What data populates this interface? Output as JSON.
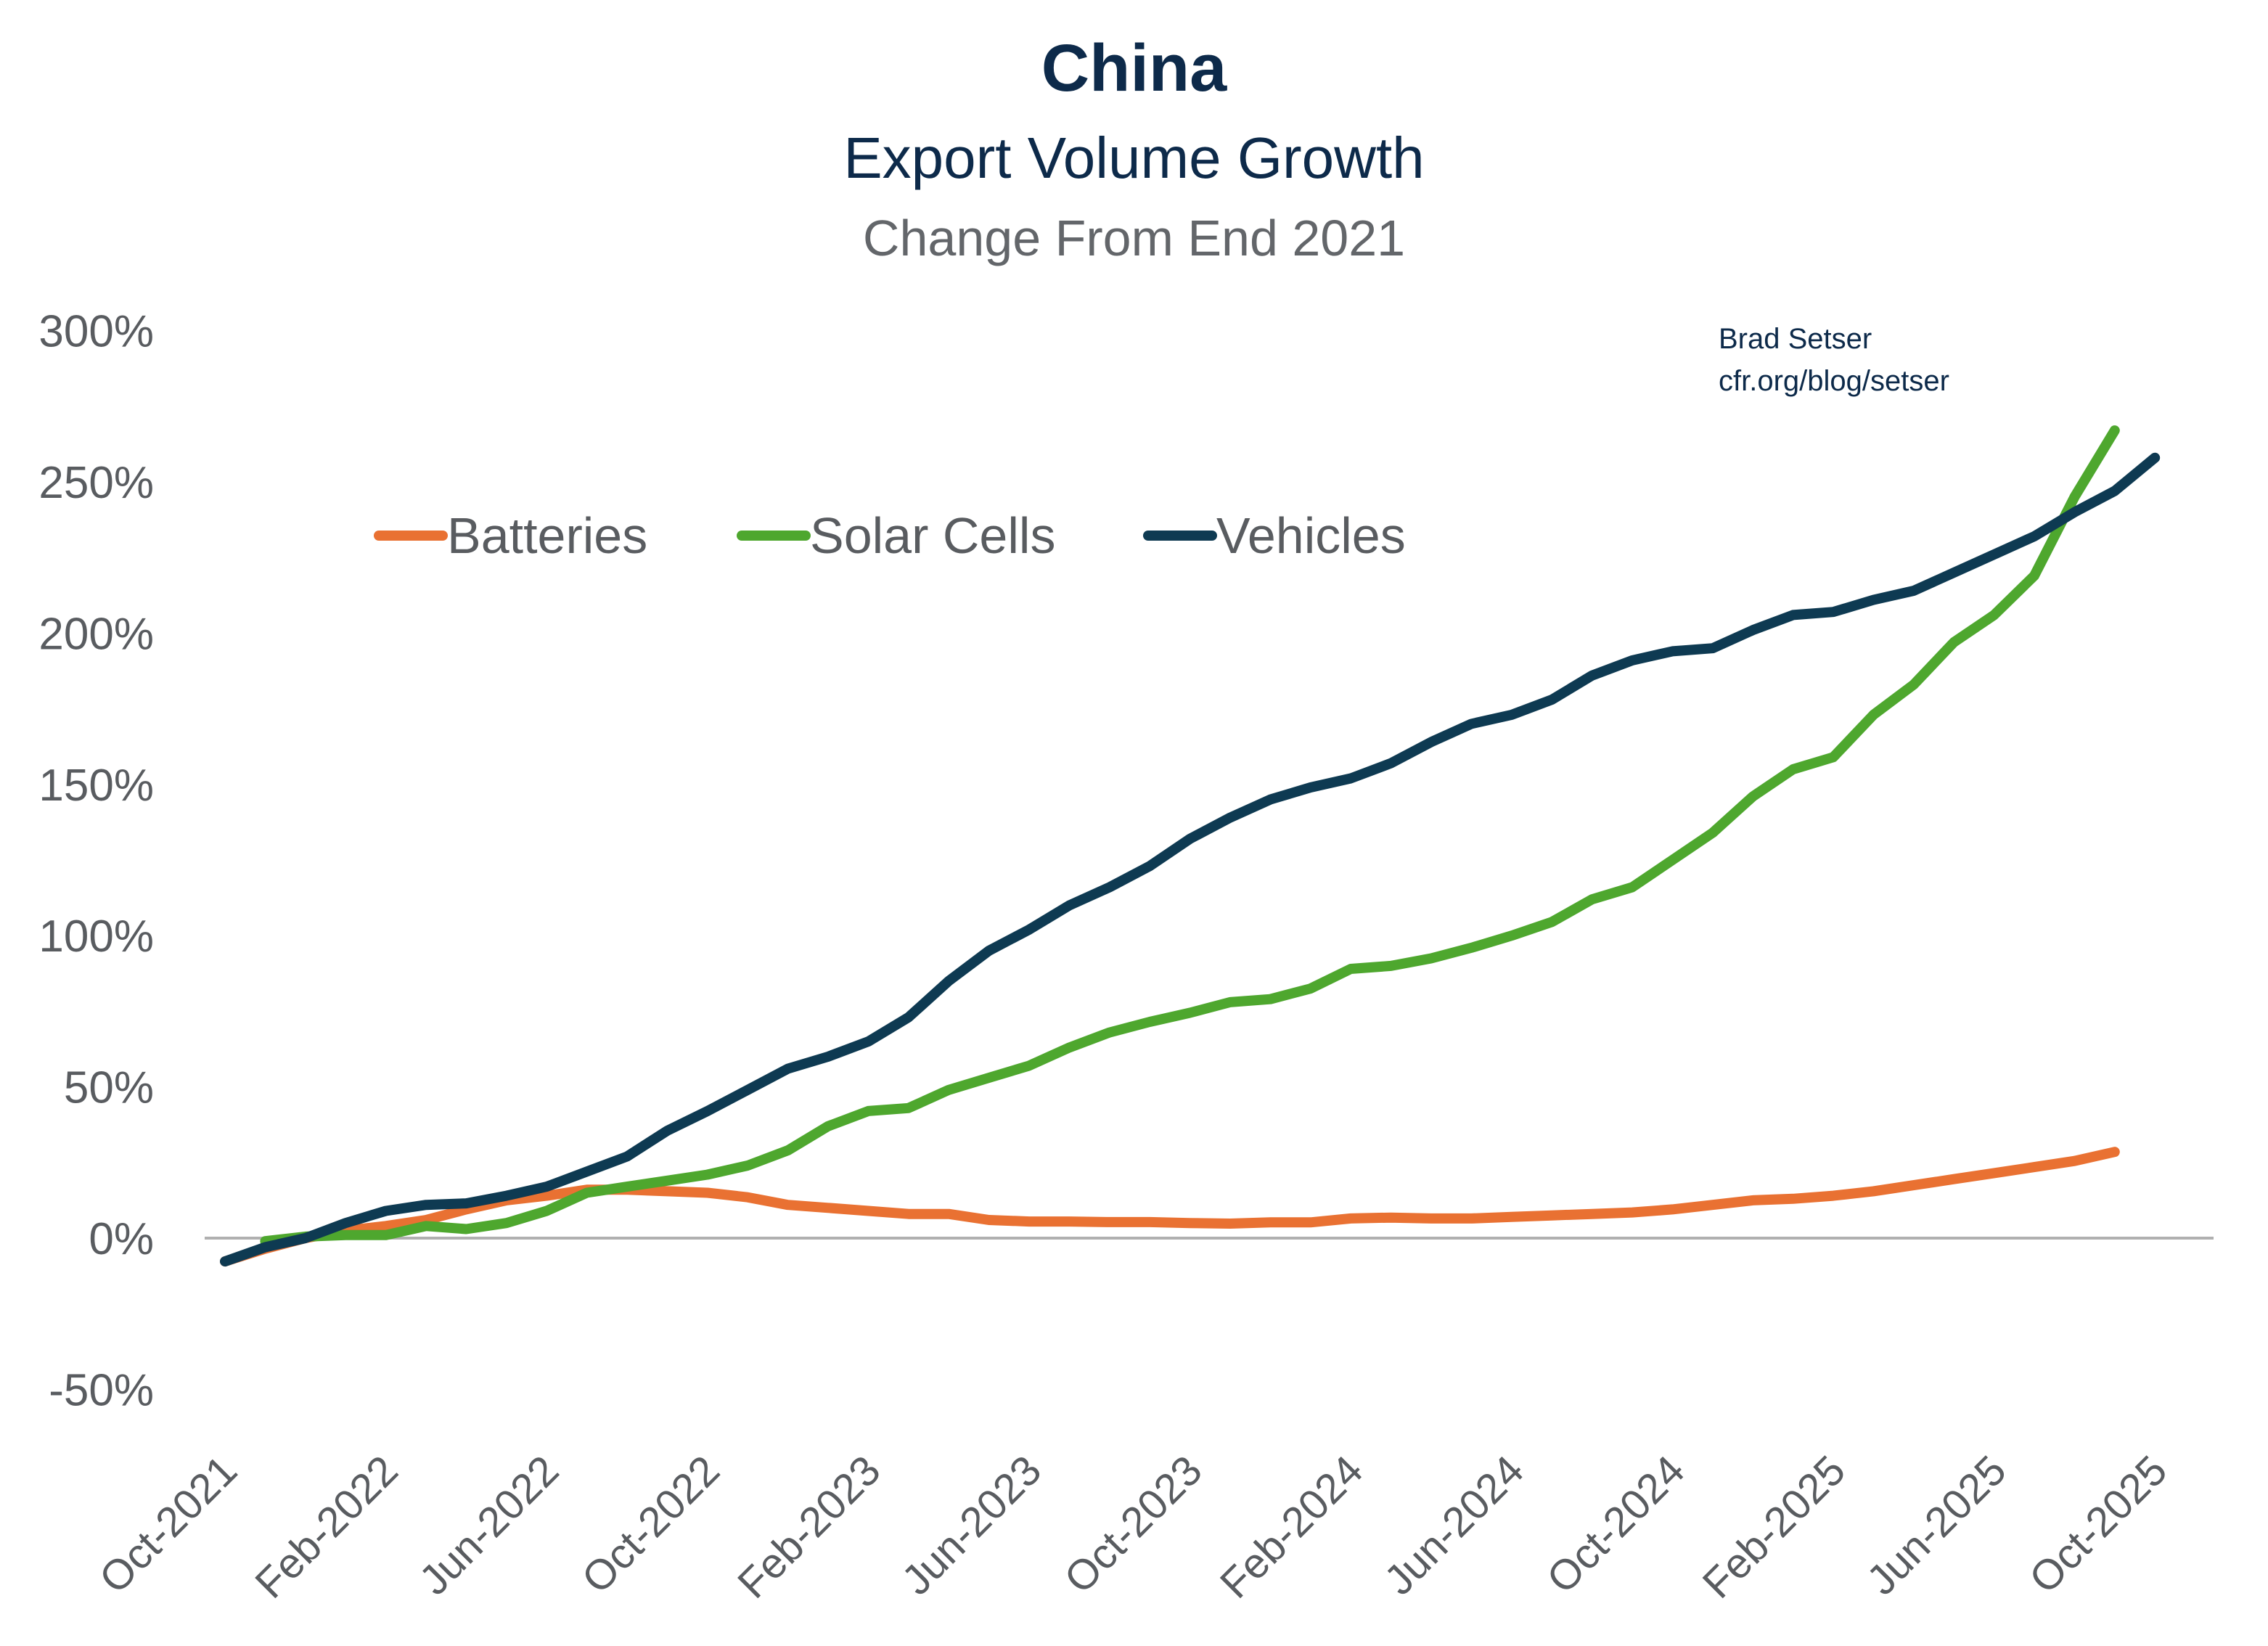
{
  "header": {
    "title": "China",
    "subtitle": "Export Volume Growth",
    "subtitle2": "Change From End 2021"
  },
  "credit": {
    "author": "Brad Setser",
    "url": "cfr.org/blog/setser"
  },
  "chart_data": {
    "type": "line",
    "title": "China",
    "subtitle": "Export Volume Growth — Change From End 2021",
    "xlabel": "",
    "ylabel": "",
    "ylim": [
      -50,
      300
    ],
    "yticks": [
      -50,
      0,
      50,
      100,
      150,
      200,
      250,
      300
    ],
    "ytick_labels": [
      "-50%",
      "0%",
      "50%",
      "100%",
      "150%",
      "200%",
      "250%",
      "300%"
    ],
    "xtick_labels": [
      "Oct-2021",
      "Feb-2022",
      "Jun-2022",
      "Oct-2022",
      "Feb-2023",
      "Jun-2023",
      "Oct-2023",
      "Feb-2024",
      "Jun-2024",
      "Oct-2024",
      "Feb-2025",
      "Jun-2025",
      "Oct-2025"
    ],
    "x_start": "Oct-2021",
    "x_frequency": "monthly",
    "grid": false,
    "zero_line": true,
    "legend_position": "top-left",
    "series": [
      {
        "name": "Batteries",
        "color": "#e97132",
        "start_index": 0,
        "values": [
          -7.7,
          -3.5,
          0,
          2.5,
          4,
          6,
          9.5,
          12.5,
          14,
          16,
          16,
          15.5,
          15,
          13.5,
          11,
          10,
          9,
          8,
          8,
          6,
          5.5,
          5.5,
          5.3,
          5.3,
          5,
          4.8,
          5.2,
          5.2,
          6.5,
          6.8,
          6.5,
          6.5,
          7,
          7.5,
          8,
          8.5,
          9.5,
          11,
          12.5,
          13,
          14,
          15.5,
          17.5,
          19.5,
          21.5,
          23.5,
          25.5,
          28.5
        ]
      },
      {
        "name": "Solar Cells",
        "color": "#4ea72e",
        "start_index": 1,
        "values": [
          -1,
          0.5,
          1,
          1,
          4,
          3,
          5,
          9,
          15,
          17,
          19,
          21,
          24,
          29,
          37,
          42,
          43,
          49,
          53,
          57,
          63,
          68,
          71.5,
          74.5,
          78,
          79,
          82.5,
          89,
          90,
          92.5,
          96,
          100,
          104.5,
          112,
          116,
          125,
          134,
          146,
          155,
          159,
          173,
          183,
          197,
          206,
          219,
          245,
          267
        ]
      },
      {
        "name": "Vehicles",
        "color": "#0e3a52",
        "start_index": 0,
        "values": [
          -7.7,
          -3,
          0,
          5,
          9,
          11,
          11.5,
          14,
          17,
          22,
          27,
          35.5,
          42,
          49,
          56,
          60,
          65,
          73,
          85,
          95,
          102,
          110,
          116,
          123,
          132,
          139,
          145,
          149,
          152,
          157,
          164,
          170,
          173,
          178,
          186,
          191,
          194,
          195,
          201,
          206,
          207,
          211,
          214,
          220,
          226,
          232,
          240,
          247,
          258
        ]
      }
    ]
  }
}
